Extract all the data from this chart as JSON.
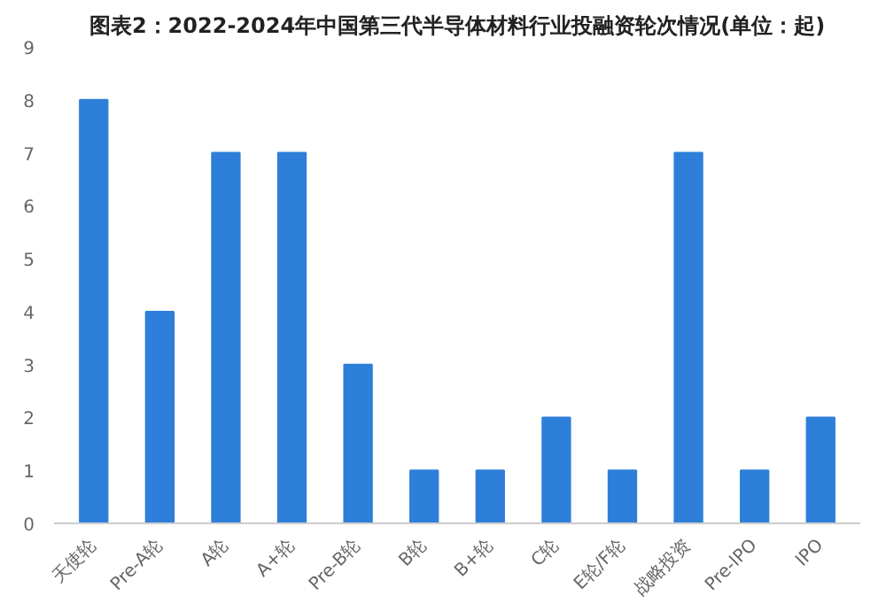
{
  "chart_data": {
    "type": "bar",
    "title": "图表2：2022-2024年中国第三代半导体材料行业投融资轮次情况(单位：起)",
    "categories": [
      "天使轮",
      "Pre-A轮",
      "A轮",
      "A+轮",
      "Pre-B轮",
      "B轮",
      "B+轮",
      "C轮",
      "E轮/F轮",
      "战略投资",
      "Pre-IPO",
      "IPO"
    ],
    "values": [
      8,
      4,
      7,
      7,
      3,
      1,
      1,
      2,
      1,
      7,
      1,
      2
    ],
    "color": "#2e7fd9",
    "ylim": [
      0,
      9
    ],
    "yticks": [
      0,
      1,
      2,
      3,
      4,
      5,
      6,
      7,
      8,
      9
    ],
    "grid": false
  }
}
